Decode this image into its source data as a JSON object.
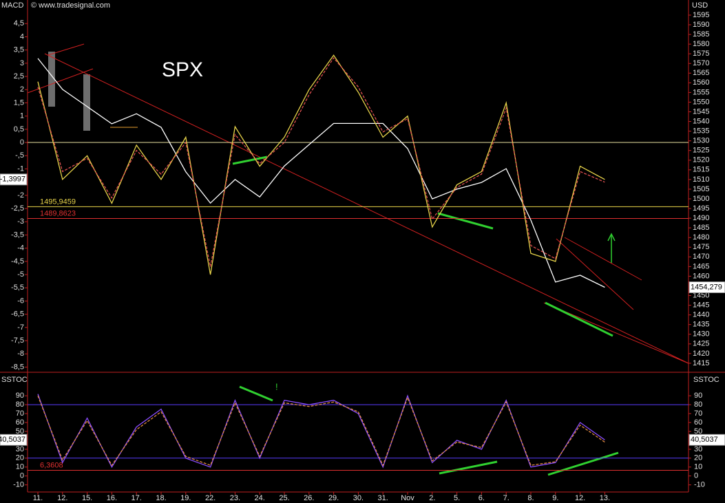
{
  "chart_data": [
    {
      "type": "line",
      "title": "SPX",
      "watermark": "© www.tradesignal.com",
      "ylabel": "MACD",
      "y2label": "USD",
      "ylim": [
        -8.67,
        5.34
      ],
      "y2lim": [
        1410.7,
        1602.1
      ],
      "yticks": [
        {
          "value": 4.5,
          "label": "4,5"
        },
        4,
        {
          "value": 3.5,
          "label": "3,5"
        },
        3,
        {
          "value": 2.5,
          "label": "2,5"
        },
        2,
        {
          "value": 1.5,
          "label": "1,5"
        },
        1,
        {
          "value": 0.5,
          "label": "0,5"
        },
        0,
        {
          "value": -0.5,
          "label": "-,5"
        },
        -1,
        {
          "value": -1.5,
          "label": "-1,5"
        },
        -2,
        {
          "value": -2.5,
          "label": "-2,5"
        },
        -3,
        {
          "value": -3.5,
          "label": "-3,5"
        },
        -4,
        {
          "value": -4.5,
          "label": "-4,5"
        },
        -5,
        {
          "value": -5.5,
          "label": "-5,5"
        },
        -6,
        {
          "value": -6.5,
          "label": "-6,5"
        },
        -7,
        {
          "value": -7.5,
          "label": "-7,5"
        },
        -8,
        {
          "value": -8.5,
          "label": "-8,5"
        }
      ],
      "y2ticks": [
        1595,
        1590,
        1585,
        1580,
        1575,
        1570,
        1565,
        1560,
        1555,
        1550,
        1545,
        1540,
        1535,
        1530,
        1525,
        1520,
        1515,
        1510,
        1505,
        1500,
        1495,
        1490,
        1485,
        1480,
        1475,
        1470,
        1465,
        1460,
        1455,
        1450,
        1445,
        1440,
        1435,
        1430,
        1425,
        1420,
        1415
      ],
      "series": [
        {
          "color": "#ffffff",
          "axis": "y2",
          "values": [
            1572.6,
            1556.6,
            1547.7,
            1538.8,
            1544,
            1537,
            1514,
            1497.8,
            1510,
            1501,
            1517,
            1528,
            1539,
            1539,
            1539,
            1526,
            1500,
            1505,
            1508.5,
            1515.6,
            1489,
            1457,
            1460.5,
            1454.279
          ]
        },
        {
          "color": "#e8d44a",
          "values": [
            2.3,
            -1.4,
            -0.5,
            -2.3,
            -0.1,
            -1.4,
            0.2,
            -5.0,
            0.6,
            -0.9,
            0.2,
            2.0,
            3.3,
            1.9,
            0.2,
            1.0,
            -3.2,
            -1.6,
            -1.1,
            1.5,
            -4.2,
            -4.5,
            -0.9,
            -1.3997
          ]
        },
        {
          "color": "#e05050",
          "dashed": true,
          "values": [
            2.1,
            -1.1,
            -0.6,
            -2.1,
            -0.3,
            -1.2,
            0.0,
            -4.7,
            0.3,
            -0.8,
            0.0,
            1.8,
            3.2,
            2.1,
            0.4,
            0.9,
            -2.9,
            -1.7,
            -1.2,
            1.3,
            -3.9,
            -4.4,
            -1.1,
            -1.5
          ]
        }
      ],
      "levels": [
        {
          "value": 0,
          "color": "#e8e0a0",
          "axis": "y"
        },
        {
          "value": 1495.9459,
          "label": "1495,9459",
          "color": "#e8d44a",
          "axis": "y2"
        },
        {
          "value": 1489.8623,
          "label": "1489,8623",
          "color": "#e03030",
          "axis": "y2"
        }
      ],
      "markers": [
        {
          "value": -1.3997,
          "label": "-1,3997",
          "axis": "y"
        },
        {
          "value": 1454.279,
          "label": "1454,279",
          "axis": "y2"
        }
      ]
    },
    {
      "type": "line",
      "ylabel": "SSTOC",
      "ylim": [
        -18,
        111
      ],
      "yticks": [
        90,
        80,
        70,
        60,
        50,
        40,
        30,
        20,
        10,
        0,
        -10
      ],
      "categories": [
        "11.",
        "12.",
        "15.",
        "16.",
        "17.",
        "18.",
        "19.",
        "22.",
        "23.",
        "24.",
        "25.",
        "26.",
        "29.",
        "30.",
        "31.",
        "Nov",
        "2.",
        "5.",
        "6.",
        "7.",
        "8.",
        "9.",
        "12.",
        "13."
      ],
      "series": [
        {
          "color": "#8a4dff",
          "values": [
            92,
            15,
            65,
            10,
            55,
            75,
            20,
            10,
            85,
            20,
            85,
            80,
            85,
            70,
            10,
            90,
            15,
            40,
            30,
            85,
            10,
            15,
            60,
            40.5037
          ]
        },
        {
          "color": "#e08a40",
          "dashed": true,
          "values": [
            90,
            18,
            62,
            12,
            52,
            72,
            22,
            12,
            82,
            22,
            82,
            78,
            83,
            72,
            12,
            88,
            17,
            38,
            32,
            83,
            12,
            16,
            57,
            38
          ]
        }
      ],
      "levels": [
        {
          "value": 80,
          "color": "#5a3cff"
        },
        {
          "value": 20,
          "color": "#5a3cff"
        },
        {
          "value": 6.3608,
          "label": "6,3608",
          "color": "#e03030"
        }
      ],
      "markers": [
        {
          "value": 40.5037,
          "label": "40,5037"
        }
      ],
      "annotation": "!"
    }
  ]
}
